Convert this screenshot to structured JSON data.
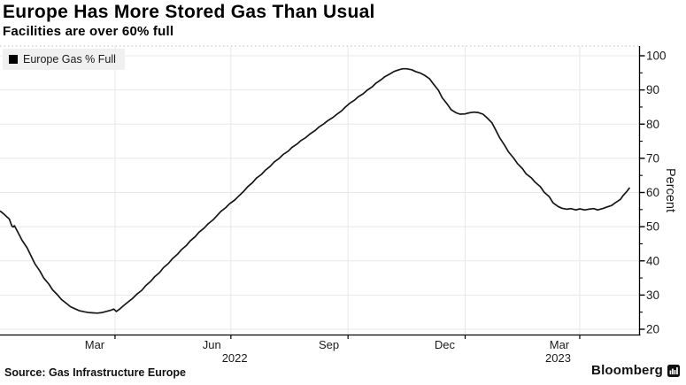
{
  "footer": {
    "source": "Source: Gas Infrastructure Europe",
    "brand": "Bloomberg",
    "brand_icon": "bloomberg-terminal-icon"
  },
  "colors": {
    "line": "#161616",
    "grid": "#e8e8e8",
    "grid_dotted_top": "#bdbdbd",
    "axis": "#000000",
    "text": "#1a1a1a",
    "legend_bg": "#f0f0f0",
    "legend_swatch": "#000000"
  },
  "chart_data": {
    "type": "line",
    "title": "Europe Has More Stored Gas Than Usual",
    "subtitle": "Facilities are over 60% full",
    "ylabel": "Percent",
    "xlabel": "",
    "ylim": [
      20,
      100
    ],
    "grid": true,
    "legend_position": "top-left",
    "y_ticks": [
      20,
      30,
      40,
      50,
      60,
      70,
      80,
      90,
      100
    ],
    "y_minor_tick_step": 5,
    "x_ticks": [
      {
        "label": "Mar",
        "center_date": "2022-03-16"
      },
      {
        "label": "Jun",
        "center_date": "2022-06-16"
      },
      {
        "label": "Sep",
        "center_date": "2022-09-16"
      },
      {
        "label": "Dec",
        "center_date": "2022-12-16"
      },
      {
        "label": "Mar",
        "center_date": "2023-03-16"
      }
    ],
    "year_labels": [
      {
        "label": "2022",
        "center_date": "2022-07-04"
      },
      {
        "label": "2023",
        "center_date": "2023-03-15"
      }
    ],
    "x_gridline_dates": [
      "2022-04-01",
      "2022-07-01",
      "2022-10-01",
      "2023-01-01",
      "2023-04-01"
    ],
    "x_range": [
      "2022-01-01",
      "2023-05-18"
    ],
    "series": [
      {
        "name": "Europe Gas % Full",
        "color": "#161616",
        "points": [
          [
            "2022-01-01",
            54.5
          ],
          [
            "2022-01-04",
            53.6
          ],
          [
            "2022-01-08",
            52.2
          ],
          [
            "2022-01-10",
            50.2
          ],
          [
            "2022-01-11",
            49.9
          ],
          [
            "2022-01-12",
            50.3
          ],
          [
            "2022-01-15",
            48.2
          ],
          [
            "2022-01-18",
            46.0
          ],
          [
            "2022-01-22",
            43.8
          ],
          [
            "2022-01-25",
            41.5
          ],
          [
            "2022-01-28",
            39.2
          ],
          [
            "2022-02-01",
            37.0
          ],
          [
            "2022-02-04",
            35.0
          ],
          [
            "2022-02-08",
            33.2
          ],
          [
            "2022-02-11",
            31.5
          ],
          [
            "2022-02-15",
            30.0
          ],
          [
            "2022-02-18",
            28.7
          ],
          [
            "2022-02-22",
            27.5
          ],
          [
            "2022-02-25",
            26.6
          ],
          [
            "2022-03-01",
            25.9
          ],
          [
            "2022-03-04",
            25.4
          ],
          [
            "2022-03-08",
            25.1
          ],
          [
            "2022-03-11",
            24.9
          ],
          [
            "2022-03-15",
            24.8
          ],
          [
            "2022-03-18",
            24.7
          ],
          [
            "2022-03-22",
            24.9
          ],
          [
            "2022-03-25",
            25.2
          ],
          [
            "2022-03-29",
            25.6
          ],
          [
            "2022-03-31",
            25.9
          ],
          [
            "2022-04-02",
            25.2
          ],
          [
            "2022-04-05",
            26.0
          ],
          [
            "2022-04-08",
            27.0
          ],
          [
            "2022-04-11",
            27.9
          ],
          [
            "2022-04-15",
            29.1
          ],
          [
            "2022-04-18",
            30.2
          ],
          [
            "2022-04-22",
            31.4
          ],
          [
            "2022-04-25",
            32.7
          ],
          [
            "2022-04-29",
            34.0
          ],
          [
            "2022-05-02",
            35.3
          ],
          [
            "2022-05-06",
            36.6
          ],
          [
            "2022-05-09",
            38.0
          ],
          [
            "2022-05-13",
            39.3
          ],
          [
            "2022-05-16",
            40.6
          ],
          [
            "2022-05-20",
            41.9
          ],
          [
            "2022-05-23",
            43.2
          ],
          [
            "2022-05-27",
            44.5
          ],
          [
            "2022-05-30",
            45.8
          ],
          [
            "2022-06-03",
            47.1
          ],
          [
            "2022-06-06",
            48.4
          ],
          [
            "2022-06-10",
            49.6
          ],
          [
            "2022-06-13",
            50.8
          ],
          [
            "2022-06-17",
            52.0
          ],
          [
            "2022-06-20",
            53.2
          ],
          [
            "2022-06-23",
            54.4
          ],
          [
            "2022-06-27",
            55.6
          ],
          [
            "2022-06-30",
            56.7
          ],
          [
            "2022-07-04",
            57.8
          ],
          [
            "2022-07-07",
            58.9
          ],
          [
            "2022-07-11",
            60.3
          ],
          [
            "2022-07-14",
            61.6
          ],
          [
            "2022-07-18",
            62.9
          ],
          [
            "2022-07-21",
            64.2
          ],
          [
            "2022-07-25",
            65.3
          ],
          [
            "2022-07-28",
            66.5
          ],
          [
            "2022-08-01",
            67.7
          ],
          [
            "2022-08-04",
            68.9
          ],
          [
            "2022-08-08",
            70.0
          ],
          [
            "2022-08-11",
            71.1
          ],
          [
            "2022-08-15",
            72.1
          ],
          [
            "2022-08-18",
            73.2
          ],
          [
            "2022-08-22",
            74.2
          ],
          [
            "2022-08-25",
            75.2
          ],
          [
            "2022-08-29",
            76.1
          ],
          [
            "2022-09-01",
            77.1
          ],
          [
            "2022-09-05",
            78.1
          ],
          [
            "2022-09-08",
            79.1
          ],
          [
            "2022-09-12",
            80.1
          ],
          [
            "2022-09-15",
            81.0
          ],
          [
            "2022-09-19",
            81.9
          ],
          [
            "2022-09-22",
            82.8
          ],
          [
            "2022-09-26",
            83.9
          ],
          [
            "2022-09-29",
            85.0
          ],
          [
            "2022-10-02",
            86.0
          ],
          [
            "2022-10-06",
            87.0
          ],
          [
            "2022-10-09",
            88.0
          ],
          [
            "2022-10-13",
            88.9
          ],
          [
            "2022-10-16",
            89.9
          ],
          [
            "2022-10-20",
            90.9
          ],
          [
            "2022-10-23",
            92.0
          ],
          [
            "2022-10-27",
            93.0
          ],
          [
            "2022-10-30",
            93.9
          ],
          [
            "2022-11-03",
            94.7
          ],
          [
            "2022-11-06",
            95.4
          ],
          [
            "2022-11-10",
            95.9
          ],
          [
            "2022-11-13",
            96.2
          ],
          [
            "2022-11-16",
            96.2
          ],
          [
            "2022-11-20",
            95.9
          ],
          [
            "2022-11-23",
            95.4
          ],
          [
            "2022-11-27",
            94.9
          ],
          [
            "2022-11-30",
            94.3
          ],
          [
            "2022-12-04",
            93.3
          ],
          [
            "2022-12-07",
            91.8
          ],
          [
            "2022-12-11",
            89.9
          ],
          [
            "2022-12-14",
            87.7
          ],
          [
            "2022-12-18",
            85.8
          ],
          [
            "2022-12-21",
            84.2
          ],
          [
            "2022-12-25",
            83.3
          ],
          [
            "2022-12-28",
            82.9
          ],
          [
            "2023-01-01",
            83.0
          ],
          [
            "2023-01-04",
            83.3
          ],
          [
            "2023-01-08",
            83.5
          ],
          [
            "2023-01-11",
            83.4
          ],
          [
            "2023-01-15",
            82.9
          ],
          [
            "2023-01-18",
            81.9
          ],
          [
            "2023-01-22",
            80.4
          ],
          [
            "2023-01-25",
            78.3
          ],
          [
            "2023-01-28",
            76.1
          ],
          [
            "2023-02-01",
            73.8
          ],
          [
            "2023-02-04",
            71.9
          ],
          [
            "2023-02-08",
            70.1
          ],
          [
            "2023-02-11",
            68.5
          ],
          [
            "2023-02-15",
            67.0
          ],
          [
            "2023-02-18",
            65.4
          ],
          [
            "2023-02-22",
            64.3
          ],
          [
            "2023-02-25",
            63.0
          ],
          [
            "2023-03-01",
            61.7
          ],
          [
            "2023-03-04",
            60.1
          ],
          [
            "2023-03-08",
            58.8
          ],
          [
            "2023-03-11",
            57.0
          ],
          [
            "2023-03-15",
            55.9
          ],
          [
            "2023-03-18",
            55.4
          ],
          [
            "2023-03-22",
            55.1
          ],
          [
            "2023-03-25",
            55.3
          ],
          [
            "2023-03-29",
            54.9
          ],
          [
            "2023-04-01",
            55.2
          ],
          [
            "2023-04-05",
            54.9
          ],
          [
            "2023-04-08",
            55.1
          ],
          [
            "2023-04-12",
            55.3
          ],
          [
            "2023-04-15",
            54.9
          ],
          [
            "2023-04-19",
            55.3
          ],
          [
            "2023-04-22",
            55.7
          ],
          [
            "2023-04-26",
            56.2
          ],
          [
            "2023-04-29",
            57.0
          ],
          [
            "2023-05-03",
            58.0
          ],
          [
            "2023-05-05",
            59.1
          ],
          [
            "2023-05-08",
            60.3
          ],
          [
            "2023-05-10",
            61.3
          ]
        ]
      }
    ]
  }
}
